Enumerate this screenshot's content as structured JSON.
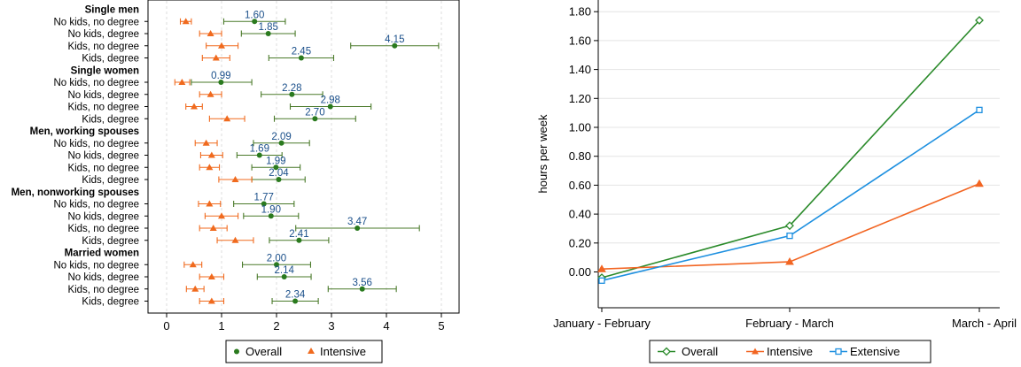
{
  "chart_data": [
    {
      "type": "scatter",
      "subtype": "dot-and-whisker",
      "title": "",
      "xlabel": "",
      "ylabel": "",
      "xlim": [
        -0.3,
        5.1
      ],
      "xticks": [
        0,
        1,
        2,
        3,
        4,
        5
      ],
      "grid": "vertical dashed",
      "legend": {
        "position": "bottom",
        "entries": [
          "Overall",
          "Intensive"
        ]
      },
      "colors": {
        "overall": "#2a7a1e",
        "overall_ci": "#4a7a2a",
        "intensive": "#f06a1e",
        "label": "#1a4f8a",
        "grid": "#dcdcdc"
      },
      "groups": [
        {
          "name": "Single men",
          "rows": [
            {
              "label": "No kids, no degree",
              "overall": 1.6,
              "overall_text": "1.60",
              "overall_ci": [
                1.04,
                2.16
              ],
              "intensive": 0.35,
              "intensive_ci": [
                0.25,
                0.45
              ]
            },
            {
              "label": "No kids, degree",
              "overall": 1.85,
              "overall_text": "1.85",
              "overall_ci": [
                1.36,
                2.34
              ],
              "intensive": 0.8,
              "intensive_ci": [
                0.6,
                1.0
              ]
            },
            {
              "label": "Kids, no degree",
              "overall": 4.15,
              "overall_text": "4.15",
              "overall_ci": [
                3.35,
                4.95
              ],
              "intensive": 1.0,
              "intensive_ci": [
                0.72,
                1.3
              ]
            },
            {
              "label": "Kids, degree",
              "overall": 2.45,
              "overall_text": "2.45",
              "overall_ci": [
                1.86,
                3.04
              ],
              "intensive": 0.9,
              "intensive_ci": [
                0.65,
                1.15
              ]
            }
          ]
        },
        {
          "name": "Single women",
          "rows": [
            {
              "label": "No kids, no degree",
              "overall": 0.99,
              "overall_text": "0.99",
              "overall_ci": [
                0.45,
                1.55
              ],
              "intensive": 0.28,
              "intensive_ci": [
                0.15,
                0.42
              ]
            },
            {
              "label": "No kids, degree",
              "overall": 2.28,
              "overall_text": "2.28",
              "overall_ci": [
                1.72,
                2.84
              ],
              "intensive": 0.8,
              "intensive_ci": [
                0.6,
                1.0
              ]
            },
            {
              "label": "Kids, no degree",
              "overall": 2.98,
              "overall_text": "2.98",
              "overall_ci": [
                2.25,
                3.72
              ],
              "intensive": 0.5,
              "intensive_ci": [
                0.35,
                0.65
              ]
            },
            {
              "label": "Kids, degree",
              "overall": 2.7,
              "overall_text": "2.70",
              "overall_ci": [
                1.96,
                3.44
              ],
              "intensive": 1.1,
              "intensive_ci": [
                0.78,
                1.42
              ]
            }
          ]
        },
        {
          "name": "Men, working spouses",
          "rows": [
            {
              "label": "No kids, no degree",
              "overall": 2.09,
              "overall_text": "2.09",
              "overall_ci": [
                1.58,
                2.6
              ],
              "intensive": 0.72,
              "intensive_ci": [
                0.52,
                0.92
              ]
            },
            {
              "label": "No kids, degree",
              "overall": 1.69,
              "overall_text": "1.69",
              "overall_ci": [
                1.28,
                2.1
              ],
              "intensive": 0.82,
              "intensive_ci": [
                0.62,
                1.02
              ]
            },
            {
              "label": "Kids, no degree",
              "overall": 1.99,
              "overall_text": "1.99",
              "overall_ci": [
                1.55,
                2.43
              ],
              "intensive": 0.78,
              "intensive_ci": [
                0.6,
                0.96
              ]
            },
            {
              "label": "Kids, degree",
              "overall": 2.04,
              "overall_text": "2.04",
              "overall_ci": [
                1.55,
                2.52
              ],
              "intensive": 1.25,
              "intensive_ci": [
                0.95,
                1.55
              ]
            }
          ]
        },
        {
          "name": "Men, nonworking spouses",
          "rows": [
            {
              "label": "No kids, no degree",
              "overall": 1.77,
              "overall_text": "1.77",
              "overall_ci": [
                1.22,
                2.32
              ],
              "intensive": 0.78,
              "intensive_ci": [
                0.58,
                0.98
              ]
            },
            {
              "label": "No kids, degree",
              "overall": 1.9,
              "overall_text": "1.90",
              "overall_ci": [
                1.4,
                2.4
              ],
              "intensive": 1.0,
              "intensive_ci": [
                0.7,
                1.3
              ]
            },
            {
              "label": "Kids, no degree",
              "overall": 3.47,
              "overall_text": "3.47",
              "overall_ci": [
                2.35,
                4.6
              ],
              "intensive": 0.85,
              "intensive_ci": [
                0.6,
                1.1
              ]
            },
            {
              "label": "Kids, degree",
              "overall": 2.41,
              "overall_text": "2.41",
              "overall_ci": [
                1.87,
                2.95
              ],
              "intensive": 1.25,
              "intensive_ci": [
                0.92,
                1.58
              ]
            }
          ]
        },
        {
          "name": "Married women",
          "rows": [
            {
              "label": "No kids, no degree",
              "overall": 2.0,
              "overall_text": "2.00",
              "overall_ci": [
                1.38,
                2.62
              ],
              "intensive": 0.48,
              "intensive_ci": [
                0.32,
                0.64
              ]
            },
            {
              "label": "No kids, degree",
              "overall": 2.14,
              "overall_text": "2.14",
              "overall_ci": [
                1.65,
                2.63
              ],
              "intensive": 0.82,
              "intensive_ci": [
                0.6,
                1.04
              ]
            },
            {
              "label": "Kids, no degree",
              "overall": 3.56,
              "overall_text": "3.56",
              "overall_ci": [
                2.94,
                4.18
              ],
              "intensive": 0.52,
              "intensive_ci": [
                0.36,
                0.68
              ]
            },
            {
              "label": "Kids, degree",
              "overall": 2.34,
              "overall_text": "2.34",
              "overall_ci": [
                1.92,
                2.76
              ],
              "intensive": 0.82,
              "intensive_ci": [
                0.6,
                1.04
              ]
            }
          ]
        }
      ]
    },
    {
      "type": "line",
      "title": "",
      "xlabel": "",
      "ylabel": "hours per week",
      "categories": [
        "January - February",
        "February - March",
        "March - April"
      ],
      "ylim": [
        -0.2,
        1.85
      ],
      "yticks": [
        "0.00",
        "0.20",
        "0.40",
        "0.60",
        "0.80",
        "1.00",
        "1.20",
        "1.40",
        "1.60",
        "1.80"
      ],
      "grid": "horizontal",
      "legend": {
        "position": "bottom",
        "entries": [
          "Overall",
          "Intensive",
          "Extensive"
        ]
      },
      "series": [
        {
          "name": "Overall",
          "color": "#2a8a2a",
          "marker": "diamond",
          "values": [
            -0.04,
            0.32,
            1.74
          ]
        },
        {
          "name": "Intensive",
          "color": "#f26522",
          "marker": "triangle",
          "values": [
            0.02,
            0.07,
            0.61
          ]
        },
        {
          "name": "Extensive",
          "color": "#1e90e0",
          "marker": "square",
          "values": [
            -0.06,
            0.25,
            1.12
          ]
        }
      ]
    }
  ]
}
